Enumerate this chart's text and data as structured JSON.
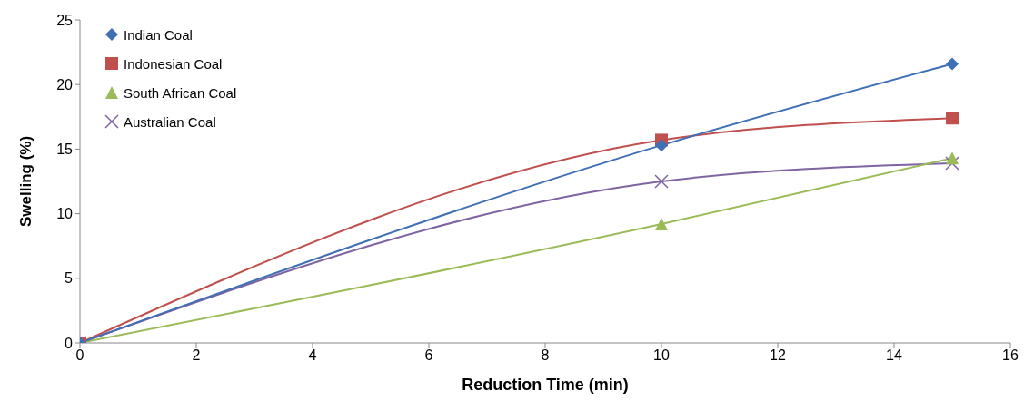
{
  "chart_data": {
    "type": "line",
    "xlabel": "Reduction Time (min)",
    "ylabel": "Swelling (%)",
    "x": [
      0,
      10,
      15
    ],
    "series": [
      {
        "name": "Indian Coal",
        "color": "#3f6fb5",
        "marker": "diamond",
        "values": [
          0,
          15.3,
          21.6
        ]
      },
      {
        "name": "Indonesian Coal",
        "color": "#c0504d",
        "marker": "square",
        "values": [
          0,
          15.7,
          17.4
        ]
      },
      {
        "name": "South African Coal",
        "color": "#9bbb59",
        "marker": "triangle",
        "values": [
          0,
          9.2,
          14.3
        ]
      },
      {
        "name": "Australian Coal",
        "color": "#8064a2",
        "marker": "cross",
        "values": [
          0,
          12.5,
          13.9
        ]
      }
    ],
    "xlim": [
      0,
      16
    ],
    "xticks": [
      0,
      2,
      4,
      6,
      8,
      10,
      12,
      14,
      16
    ],
    "ylim": [
      0,
      25
    ],
    "yticks": [
      0,
      5,
      10,
      15,
      20,
      25
    ],
    "grid": false,
    "legend": "top left",
    "line_style": "solid"
  }
}
